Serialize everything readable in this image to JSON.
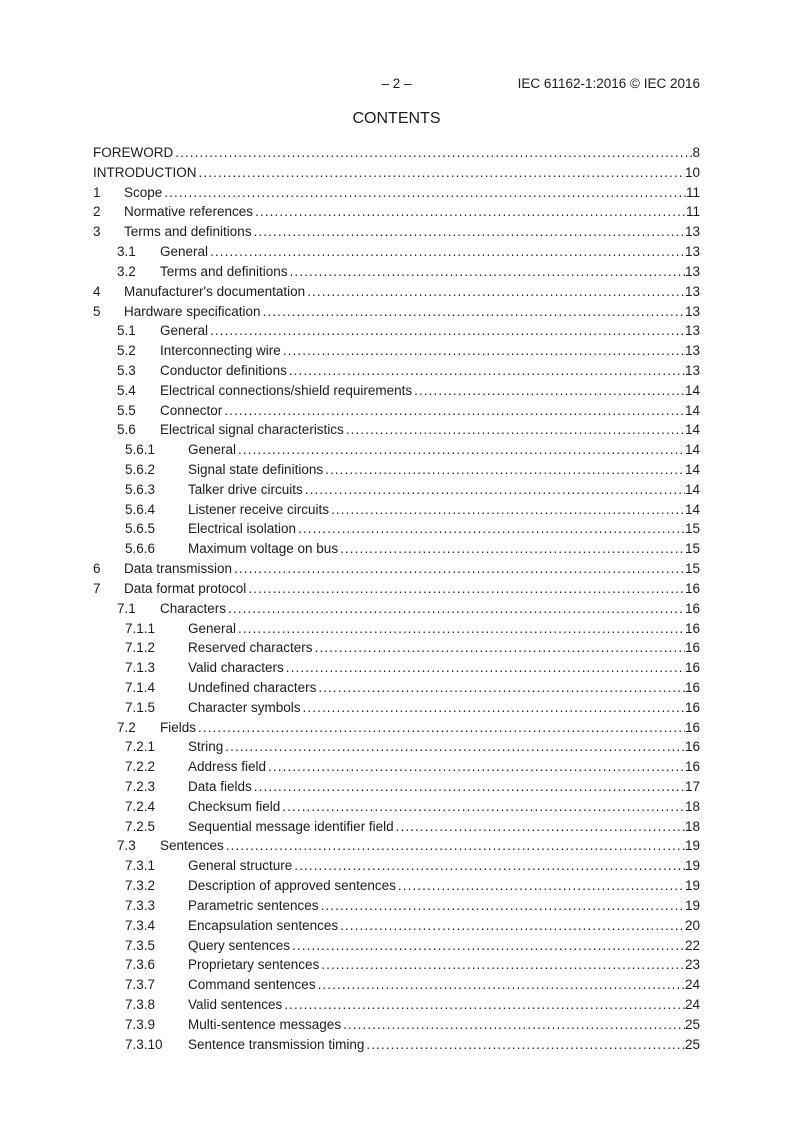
{
  "colors": {
    "text": "#1c1c1c",
    "background": "#ffffff"
  },
  "page_header": {
    "page_number": "– 2 –",
    "document_ref": "IEC 61162-1:2016 © IEC 2016"
  },
  "title": "CONTENTS",
  "toc": {
    "entries": [
      {
        "level": 0,
        "num": "",
        "label": "FOREWORD",
        "page": "8"
      },
      {
        "level": 0,
        "num": "",
        "label": "INTRODUCTION",
        "page": "10"
      },
      {
        "level": 0,
        "num": "1",
        "label": "Scope",
        "page": "11"
      },
      {
        "level": 0,
        "num": "2",
        "label": "Normative references",
        "page": "11"
      },
      {
        "level": 0,
        "num": "3",
        "label": "Terms and definitions",
        "page": "13"
      },
      {
        "level": 1,
        "num": "3.1",
        "label": "General",
        "page": "13"
      },
      {
        "level": 1,
        "num": "3.2",
        "label": "Terms and definitions",
        "page": "13"
      },
      {
        "level": 0,
        "num": "4",
        "label": "Manufacturer's documentation",
        "page": "13"
      },
      {
        "level": 0,
        "num": "5",
        "label": "Hardware specification",
        "page": "13"
      },
      {
        "level": 1,
        "num": "5.1",
        "label": "General",
        "page": "13"
      },
      {
        "level": 1,
        "num": "5.2",
        "label": "Interconnecting wire",
        "page": "13"
      },
      {
        "level": 1,
        "num": "5.3",
        "label": "Conductor definitions",
        "page": "13"
      },
      {
        "level": 1,
        "num": "5.4",
        "label": "Electrical connections/shield requirements",
        "page": "14"
      },
      {
        "level": 1,
        "num": "5.5",
        "label": "Connector",
        "page": "14"
      },
      {
        "level": 1,
        "num": "5.6",
        "label": "Electrical signal characteristics",
        "page": "14"
      },
      {
        "level": 2,
        "num": "5.6.1",
        "label": "General",
        "page": "14"
      },
      {
        "level": 2,
        "num": "5.6.2",
        "label": "Signal state definitions",
        "page": "14"
      },
      {
        "level": 2,
        "num": "5.6.3",
        "label": "Talker drive circuits",
        "page": "14"
      },
      {
        "level": 2,
        "num": "5.6.4",
        "label": "Listener receive circuits",
        "page": "14"
      },
      {
        "level": 2,
        "num": "5.6.5",
        "label": "Electrical isolation",
        "page": "15"
      },
      {
        "level": 2,
        "num": "5.6.6",
        "label": "Maximum voltage on bus",
        "page": "15"
      },
      {
        "level": 0,
        "num": "6",
        "label": "Data transmission",
        "page": "15"
      },
      {
        "level": 0,
        "num": "7",
        "label": "Data format protocol",
        "page": "16"
      },
      {
        "level": 1,
        "num": "7.1",
        "label": "Characters",
        "page": "16"
      },
      {
        "level": 2,
        "num": "7.1.1",
        "label": "General",
        "page": "16"
      },
      {
        "level": 2,
        "num": "7.1.2",
        "label": "Reserved characters",
        "page": "16"
      },
      {
        "level": 2,
        "num": "7.1.3",
        "label": "Valid characters",
        "page": "16"
      },
      {
        "level": 2,
        "num": "7.1.4",
        "label": "Undefined characters",
        "page": "16"
      },
      {
        "level": 2,
        "num": "7.1.5",
        "label": "Character symbols",
        "page": "16"
      },
      {
        "level": 1,
        "num": "7.2",
        "label": "Fields",
        "page": "16"
      },
      {
        "level": 2,
        "num": "7.2.1",
        "label": "String",
        "page": "16"
      },
      {
        "level": 2,
        "num": "7.2.2",
        "label": "Address field",
        "page": "16"
      },
      {
        "level": 2,
        "num": "7.2.3",
        "label": "Data fields",
        "page": "17"
      },
      {
        "level": 2,
        "num": "7.2.4",
        "label": "Checksum field",
        "page": "18"
      },
      {
        "level": 2,
        "num": "7.2.5",
        "label": "Sequential message identifier field",
        "page": "18"
      },
      {
        "level": 1,
        "num": "7.3",
        "label": "Sentences",
        "page": "19"
      },
      {
        "level": 2,
        "num": "7.3.1",
        "label": "General structure",
        "page": "19"
      },
      {
        "level": 2,
        "num": "7.3.2",
        "label": "Description of approved sentences",
        "page": "19"
      },
      {
        "level": 2,
        "num": "7.3.3",
        "label": "Parametric sentences",
        "page": "19"
      },
      {
        "level": 2,
        "num": "7.3.4",
        "label": "Encapsulation sentences",
        "page": "20"
      },
      {
        "level": 2,
        "num": "7.3.5",
        "label": "Query sentences",
        "page": "22"
      },
      {
        "level": 2,
        "num": "7.3.6",
        "label": "Proprietary sentences",
        "page": "23"
      },
      {
        "level": 2,
        "num": "7.3.7",
        "label": "Command sentences",
        "page": "24"
      },
      {
        "level": 2,
        "num": "7.3.8",
        "label": "Valid sentences",
        "page": "24"
      },
      {
        "level": 2,
        "num": "7.3.9",
        "label": "Multi-sentence messages",
        "page": "25"
      },
      {
        "level": 2,
        "num": "7.3.10",
        "label": "Sentence transmission timing",
        "page": "25"
      }
    ]
  }
}
